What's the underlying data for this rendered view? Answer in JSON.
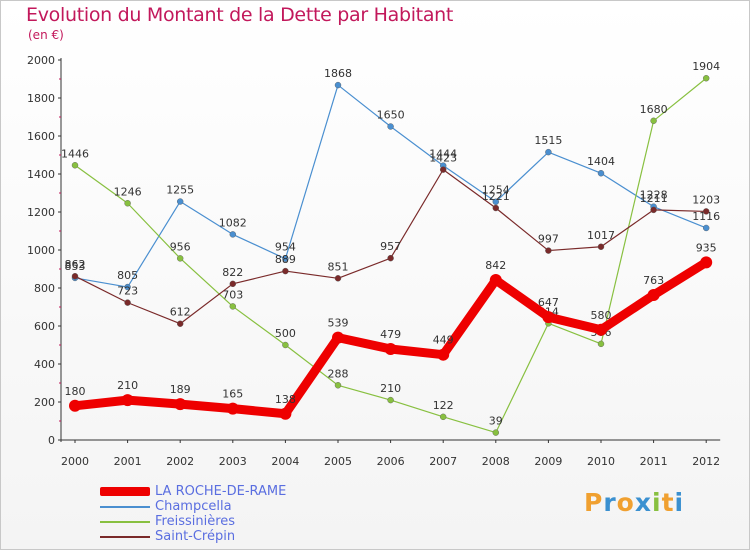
{
  "title": "Evolution du Montant de la Dette par Habitant",
  "subtitle": "(en €)",
  "logo": {
    "letters": [
      "P",
      "r",
      "o",
      "x",
      "i",
      "t",
      "i"
    ],
    "colors": [
      "#f0a030",
      "#3a90d0",
      "#f0a030",
      "#3a90d0",
      "#88c040",
      "#f0a030",
      "#3a90d0"
    ]
  },
  "chart_data": {
    "type": "line",
    "x": [
      "2000",
      "2001",
      "2002",
      "2003",
      "2004",
      "2005",
      "2006",
      "2007",
      "2008",
      "2009",
      "2010",
      "2011",
      "2012"
    ],
    "ylim": [
      0,
      2000
    ],
    "yticks": [
      "0",
      "200",
      "400",
      "600",
      "800",
      "1000",
      "1200",
      "1400",
      "1600",
      "1800",
      "2000"
    ],
    "grid": false,
    "legend_position": "bottom-left",
    "series": [
      {
        "name": "LA ROCHE-DE-RAME",
        "color": "#ee0000",
        "values": [
          180,
          210,
          189,
          165,
          138,
          539,
          479,
          449,
          842,
          647,
          580,
          763,
          935
        ],
        "labels": [
          "180",
          "210",
          "189",
          "165",
          "138",
          "539",
          "479",
          "449",
          "842",
          "647",
          "580",
          "763",
          "935"
        ]
      },
      {
        "name": "Champcella",
        "color": "#4a8fd0",
        "values": [
          853,
          805,
          1255,
          1082,
          954,
          1868,
          1650,
          1444,
          1254,
          1515,
          1404,
          1228,
          1116
        ],
        "labels": [
          "853",
          "805",
          "1255",
          "1082",
          "954",
          "1868",
          "1650",
          "1444",
          "1254",
          "1515",
          "1404",
          "1228",
          "1116"
        ]
      },
      {
        "name": "Freissinières",
        "color": "#88c040",
        "values": [
          1446,
          1246,
          956,
          703,
          500,
          288,
          210,
          122,
          39,
          614,
          506,
          1680,
          1904
        ],
        "labels": [
          "1446",
          "1246",
          "956",
          "703",
          "500",
          "288",
          "210",
          "122",
          "39",
          "614",
          "506",
          "1680",
          "1904"
        ]
      },
      {
        "name": "Saint-Crépin",
        "color": "#7a2a2a",
        "values": [
          862,
          723,
          612,
          822,
          889,
          851,
          957,
          1423,
          1221,
          997,
          1017,
          1211,
          1203
        ],
        "labels": [
          "862",
          "723",
          "612",
          "822",
          "889",
          "851",
          "957",
          "1423",
          "1221",
          "997",
          "1017",
          "1211",
          "1203"
        ]
      }
    ]
  }
}
